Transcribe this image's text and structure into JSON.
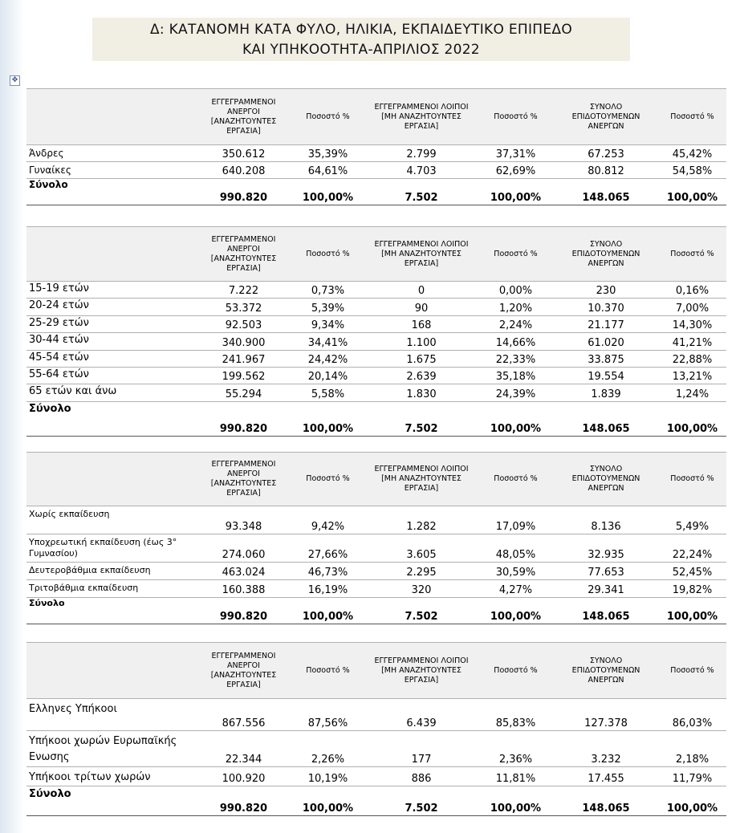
{
  "title": [
    "Δ: ΚΑΤΑΝΟΜΗ ΚΑΤΑ ΦΥΛΟ, ΗΛΙΚΙΑ, ΕΚΠΑΙΔΕΥΤΙΚΟ ΕΠΙΠΕΔΟ",
    "ΚΑΙ ΥΠΗΚΟΟΤΗΤΑ-ΑΠΡΙΛΙΟΣ 2022"
  ],
  "tables": [
    {
      "headers": [
        "ΕΓΓΕΓΡΑΜΜΕΝΟΙ ΑΝΕΡΓΟΙ [ΑΝΑΖΗΤΟΥΝΤΕΣ ΕΡΓΑΣΙΑ]",
        "Ποσοστό %",
        "ΕΓΓΕΓΡΑΜΜΕΝΟΙ ΛΟΙΠΟΙ [ΜΗ ΑΝΑΖΗΤΟΥΝΤΕΣ ΕΡΓΑΣΙΑ]",
        "Ποσοστό %",
        "ΣΥΝΟΛΟ ΕΠΙΔΟΤΟΥΜΕΝΩΝ ΑΝΕΡΓΩΝ",
        "Ποσοστό %"
      ],
      "rows": [
        [
          "Άνδρες",
          "350.612",
          "35,39%",
          "2.799",
          "37,31%",
          "67.253",
          "45,42%"
        ],
        [
          "Γυναίκες",
          "640.208",
          "64,61%",
          "4.703",
          "62,69%",
          "80.812",
          "54,58%"
        ]
      ],
      "total": [
        "Σύνολο",
        "990.820",
        "100,00%",
        "7.502",
        "100,00%",
        "148.065",
        "100,00%"
      ]
    },
    {
      "headers": [
        "ΕΓΓΕΓΡΑΜΜΕΝΟΙ ΑΝΕΡΓΟΙ [ΑΝΑΖΗΤΟΥΝΤΕΣ ΕΡΓΑΣΙΑ]",
        "Ποσοστό %",
        "ΕΓΓΕΓΡΑΜΜΕΝΟΙ ΛΟΙΠΟΙ [ΜΗ ΑΝΑΖΗΤΟΥΝΤΕΣ ΕΡΓΑΣΙΑ]",
        "Ποσοστό %",
        "ΣΥΝΟΛΟ ΕΠΙΔΟΤΟΥΜΕΝΩΝ ΑΝΕΡΓΩΝ",
        "Ποσοστό %"
      ],
      "rows": [
        [
          "15-19  ετών",
          "7.222",
          "0,73%",
          "0",
          "0,00%",
          "230",
          "0,16%"
        ],
        [
          "20-24  ετών",
          "53.372",
          "5,39%",
          "90",
          "1,20%",
          "10.370",
          "7,00%"
        ],
        [
          "25-29 ετών",
          "92.503",
          "9,34%",
          "168",
          "2,24%",
          "21.177",
          "14,30%"
        ],
        [
          "30-44  ετών",
          "340.900",
          "34,41%",
          "1.100",
          "14,66%",
          "61.020",
          "41,21%"
        ],
        [
          "45-54 ετών",
          "241.967",
          "24,42%",
          "1.675",
          "22,33%",
          "33.875",
          "22,88%"
        ],
        [
          "55-64 ετών",
          "199.562",
          "20,14%",
          "2.639",
          "35,18%",
          "19.554",
          "13,21%"
        ],
        [
          "65 ετών και άνω",
          "55.294",
          "5,58%",
          "1.830",
          "24,39%",
          "1.839",
          "1,24%"
        ]
      ],
      "total": [
        "Σύνολο",
        "990.820",
        "100,00%",
        "7.502",
        "100,00%",
        "148.065",
        "100,00%"
      ]
    },
    {
      "headers": [
        "ΕΓΓΕΓΡΑΜΜΕΝΟΙ ΑΝΕΡΓΟΙ [ΑΝΑΖΗΤΟΥΝΤΕΣ ΕΡΓΑΣΙΑ]",
        "Ποσοστό %",
        "ΕΓΓΕΓΡΑΜΜΕΝΟΙ ΛΟΙΠΟΙ [ΜΗ ΑΝΑΖΗΤΟΥΝΤΕΣ ΕΡΓΑΣΙΑ]",
        "Ποσοστό %",
        "ΣΥΝΟΛΟ ΕΠΙΔΟΤΟΥΜΕΝΩΝ ΑΝΕΡΓΩΝ",
        "Ποσοστό %"
      ],
      "rows": [
        [
          "Χωρίς εκπαίδευση",
          "93.348",
          "9,42%",
          "1.282",
          "17,09%",
          "8.136",
          "5,49%"
        ],
        [
          "Υποχρεωτική εκπαίδευση (έως 3° Γυμνασίου)",
          "274.060",
          "27,66%",
          "3.605",
          "48,05%",
          "32.935",
          "22,24%"
        ],
        [
          "Δευτεροβάθμια εκπαίδευση",
          "463.024",
          "46,73%",
          "2.295",
          "30,59%",
          "77.653",
          "52,45%"
        ],
        [
          "Τριτοβάθμια εκπαίδευση",
          "160.388",
          "16,19%",
          "320",
          "4,27%",
          "29.341",
          "19,82%"
        ]
      ],
      "total": [
        "Σύνολο",
        "990.820",
        "100,00%",
        "7.502",
        "100,00%",
        "148.065",
        "100,00%"
      ]
    },
    {
      "headers": [
        "ΕΓΓΕΓΡΑΜΜΕΝΟΙ ΑΝΕΡΓΟΙ [ΑΝΑΖΗΤΟΥΝΤΕΣ ΕΡΓΑΣΙΑ]",
        "Ποσοστό %",
        "ΕΓΓΕΓΡΑΜΜΕΝΟΙ ΛΟΙΠΟΙ [ΜΗ ΑΝΑΖΗΤΟΥΝΤΕΣ ΕΡΓΑΣΙΑ]",
        "Ποσοστό %",
        "ΣΥΝΟΛΟ ΕΠΙΔΟΤΟΥΜΕΝΩΝ ΑΝΕΡΓΩΝ",
        "Ποσοστό %"
      ],
      "rows": [
        [
          "Ελληνες Υπήκοοι",
          "867.556",
          "87,56%",
          "6.439",
          "85,83%",
          "127.378",
          "86,03%"
        ],
        [
          "Υπήκοοι χωρών Ευρωπαϊκής Ενωσης",
          "22.344",
          "2,26%",
          "177",
          "2,36%",
          "3.232",
          "2,18%"
        ],
        [
          "Υπήκοοι τρίτων χωρών",
          "100.920",
          "10,19%",
          "886",
          "11,81%",
          "17.455",
          "11,79%"
        ]
      ],
      "total": [
        "Σύνολο",
        "990.820",
        "100,00%",
        "7.502",
        "100,00%",
        "148.065",
        "100,00%"
      ]
    }
  ]
}
